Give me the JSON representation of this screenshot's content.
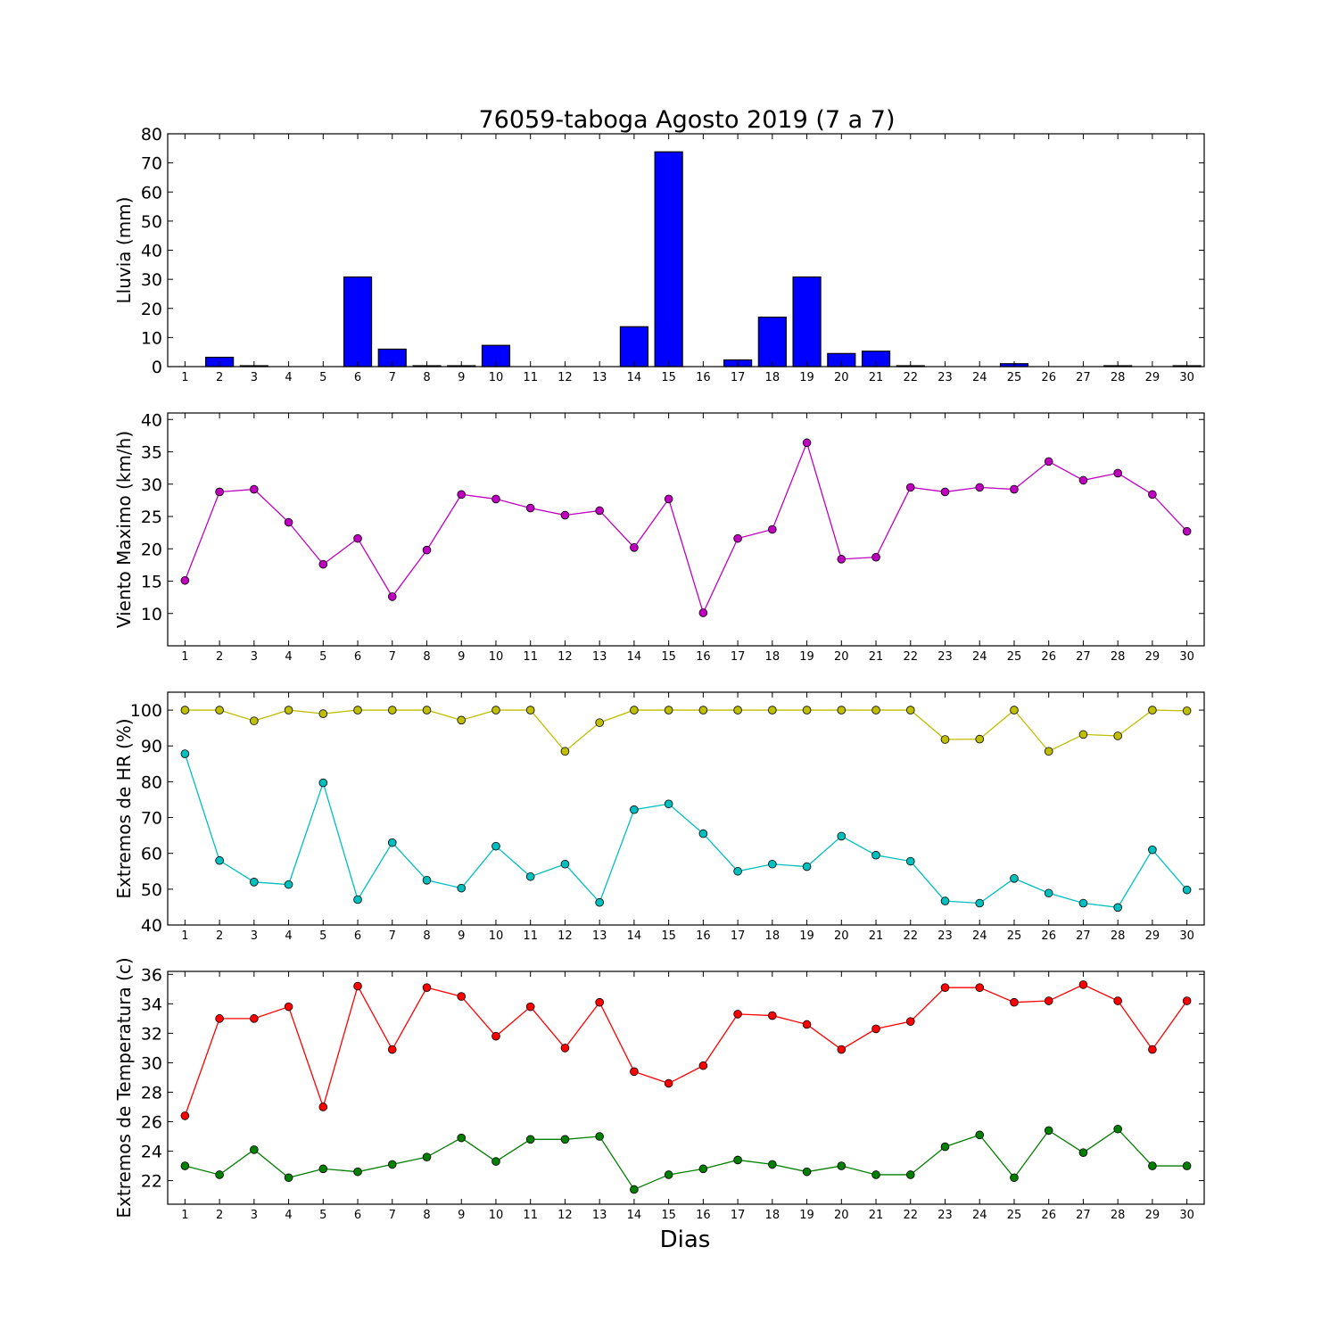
{
  "figure": {
    "title": "76059-taboga Agosto 2019  (7 a 7)",
    "xlabel": "Dias"
  },
  "chart_data": [
    {
      "type": "bar",
      "ylabel": "Lluvia (mm)",
      "ylim": [
        0,
        80
      ],
      "yticks": [
        0,
        10,
        20,
        30,
        40,
        50,
        60,
        70,
        80
      ],
      "categories": [
        "1",
        "2",
        "3",
        "4",
        "5",
        "6",
        "7",
        "8",
        "9",
        "10",
        "11",
        "12",
        "13",
        "14",
        "15",
        "16",
        "17",
        "18",
        "19",
        "20",
        "21",
        "22",
        "23",
        "24",
        "25",
        "26",
        "27",
        "28",
        "29",
        "30"
      ],
      "series": [
        {
          "color": "#0000ff",
          "values": [
            0,
            3.2,
            0.3,
            0,
            0,
            30.8,
            6,
            0.3,
            0.3,
            7.3,
            0,
            0,
            0,
            13.7,
            73.8,
            0,
            2.3,
            17,
            30.8,
            4.5,
            5.3,
            0.3,
            0,
            0,
            1,
            0,
            0,
            0.3,
            0,
            0.3
          ]
        }
      ]
    },
    {
      "type": "line",
      "ylabel": "Viento Maximo (km/h)",
      "ylim": [
        5,
        41
      ],
      "yticks": [
        10,
        15,
        20,
        25,
        30,
        35,
        40
      ],
      "categories": [
        "1",
        "2",
        "3",
        "4",
        "5",
        "6",
        "7",
        "8",
        "9",
        "10",
        "11",
        "12",
        "13",
        "14",
        "15",
        "16",
        "17",
        "18",
        "19",
        "20",
        "21",
        "22",
        "23",
        "24",
        "25",
        "26",
        "27",
        "28",
        "29",
        "30"
      ],
      "series": [
        {
          "color": "#bf00bf",
          "values": [
            15.1,
            28.8,
            29.2,
            24.1,
            17.6,
            21.6,
            12.6,
            19.8,
            28.4,
            27.7,
            26.3,
            25.2,
            25.9,
            20.2,
            27.7,
            10.1,
            21.6,
            23.0,
            36.4,
            18.4,
            18.7,
            29.5,
            28.8,
            29.5,
            29.2,
            33.5,
            30.6,
            31.7,
            28.4,
            22.7
          ]
        }
      ]
    },
    {
      "type": "line",
      "ylabel": "Extremos de HR (%)",
      "ylim": [
        40,
        105
      ],
      "yticks": [
        40,
        50,
        60,
        70,
        80,
        90,
        100
      ],
      "categories": [
        "1",
        "2",
        "3",
        "4",
        "5",
        "6",
        "7",
        "8",
        "9",
        "10",
        "11",
        "12",
        "13",
        "14",
        "15",
        "16",
        "17",
        "18",
        "19",
        "20",
        "21",
        "22",
        "23",
        "24",
        "25",
        "26",
        "27",
        "28",
        "29",
        "30"
      ],
      "series": [
        {
          "color": "#bfbf00",
          "values": [
            100,
            100,
            97,
            100,
            99,
            100,
            100,
            100,
            97.2,
            100,
            100,
            88.5,
            96.5,
            100,
            100,
            100,
            100,
            100,
            100,
            100,
            100,
            100,
            91.8,
            91.9,
            100,
            88.5,
            93.2,
            92.8,
            100,
            99.8
          ]
        },
        {
          "color": "#00bfbf",
          "values": [
            87.8,
            58,
            52,
            51.3,
            79.7,
            47.1,
            63,
            52.5,
            50.3,
            62,
            53.5,
            57,
            46.3,
            72.2,
            73.8,
            65.5,
            55,
            57,
            56.3,
            64.8,
            59.5,
            57.8,
            46.7,
            46.1,
            53,
            48.9,
            46.1,
            44.9,
            61,
            49.8
          ]
        }
      ]
    },
    {
      "type": "line",
      "ylabel": "Extremos de Temperatura (c)",
      "ylim": [
        20.4,
        36.2
      ],
      "yticks": [
        22,
        24,
        26,
        28,
        30,
        32,
        34,
        36
      ],
      "categories": [
        "1",
        "2",
        "3",
        "4",
        "5",
        "6",
        "7",
        "8",
        "9",
        "10",
        "11",
        "12",
        "13",
        "14",
        "15",
        "16",
        "17",
        "18",
        "19",
        "20",
        "21",
        "22",
        "23",
        "24",
        "25",
        "26",
        "27",
        "28",
        "29",
        "30"
      ],
      "series": [
        {
          "color": "#ff0000",
          "values": [
            26.4,
            33.0,
            33.0,
            33.8,
            27.0,
            35.2,
            30.9,
            35.1,
            34.5,
            31.8,
            33.8,
            31.0,
            34.1,
            29.4,
            28.6,
            29.8,
            33.3,
            33.2,
            32.6,
            30.9,
            32.3,
            32.8,
            35.1,
            35.1,
            34.1,
            34.2,
            35.3,
            34.2,
            30.9,
            34.2
          ]
        },
        {
          "color": "#007f00",
          "values": [
            23.0,
            22.4,
            24.1,
            22.2,
            22.8,
            22.6,
            23.1,
            23.6,
            24.9,
            23.3,
            24.8,
            24.8,
            25.0,
            21.4,
            22.4,
            22.8,
            23.4,
            23.1,
            22.6,
            23.0,
            22.4,
            22.4,
            24.3,
            25.1,
            22.2,
            25.4,
            23.9,
            25.5,
            23.0,
            23.0
          ]
        }
      ]
    }
  ]
}
